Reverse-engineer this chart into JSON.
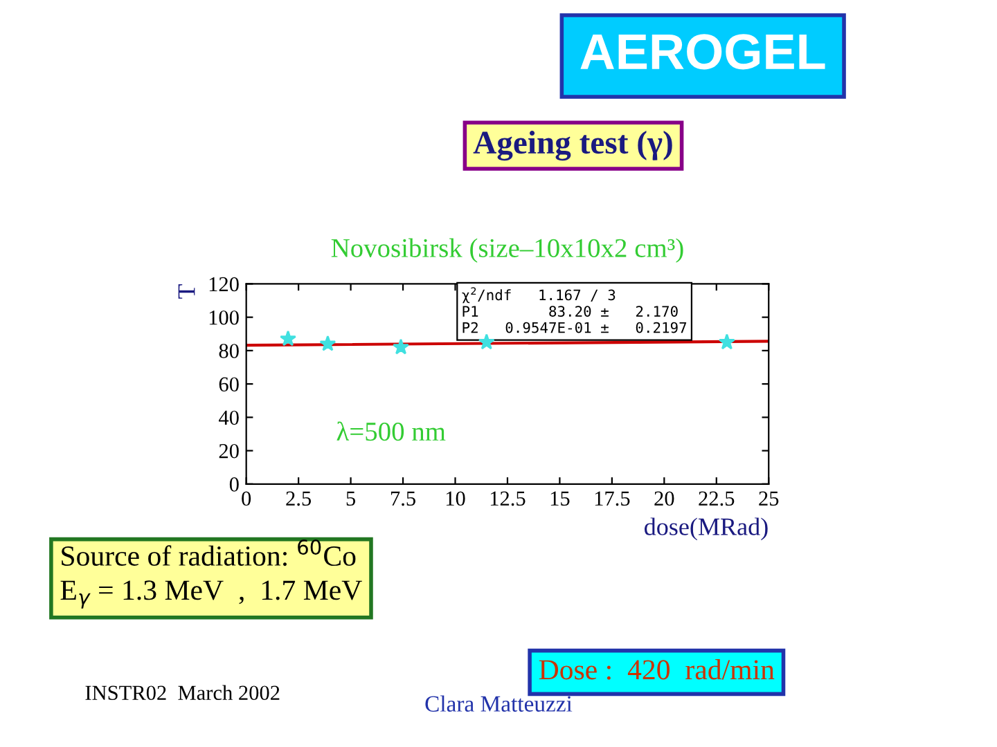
{
  "chart_data": {
    "type": "scatter",
    "title": "Novosibirsk (size–10x10x2 cm³)",
    "xlabel": "dose(MRad)",
    "ylabel": "T",
    "x": [
      2,
      3.9,
      7.4,
      11.5,
      23
    ],
    "series": [
      {
        "marker": "star",
        "color": "#40e0e0",
        "values": [
          87,
          84,
          82,
          85,
          85
        ],
        "errors": [
          2,
          2,
          2,
          2,
          2
        ]
      },
      {
        "type": "line",
        "marker": "none",
        "color": "#cc0000",
        "x": [
          0,
          25
        ],
        "values": [
          83.2,
          85.6
        ]
      }
    ],
    "xlim": [
      0,
      25
    ],
    "ylim": [
      0,
      120
    ],
    "xticks": [
      0,
      2.5,
      5,
      7.5,
      10,
      12.5,
      15,
      17.5,
      20,
      22.5,
      25
    ],
    "yticks": [
      0,
      20,
      40,
      60,
      80,
      100,
      120
    ],
    "grid": false,
    "legend": false,
    "annotations": [
      "AEROGEL",
      "Ageing test (γ)",
      "λ=500 nm",
      "χ$^{2}$/ndf   1.167 / 3\nP1        83.20 ±   2.170\nP2   0.9547E-01 ±   0.2197",
      "Source of radiation: $^{60}$Co\nE$_{γ}$ = 1.3 MeV  ,  1.7 MeV",
      "Dose :  420  rad/min",
      "INSTR02  March 2002",
      "Clara Matteuzzi"
    ]
  }
}
